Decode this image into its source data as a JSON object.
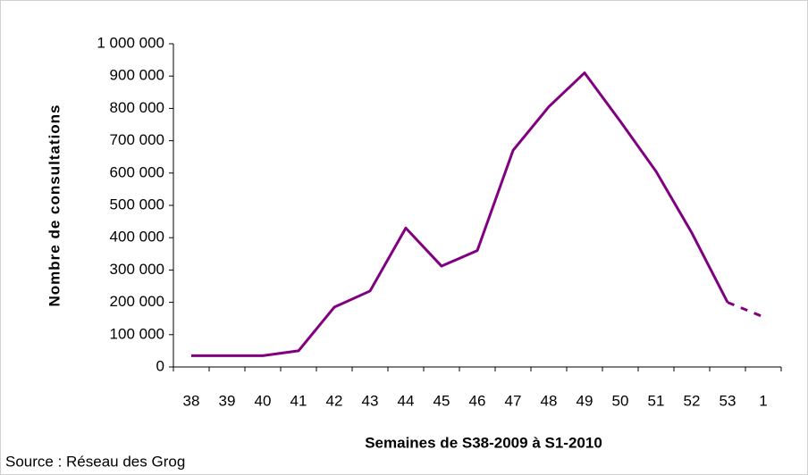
{
  "chart_data": {
    "type": "line",
    "y_label": "Nombre de consultations",
    "x_label": "Semaines de S38-2009 à S1-2010",
    "source": "Source : Réseau des Grog",
    "categories": [
      "38",
      "39",
      "40",
      "41",
      "42",
      "43",
      "44",
      "45",
      "46",
      "47",
      "48",
      "49",
      "50",
      "51",
      "52",
      "53",
      "1"
    ],
    "values": [
      35000,
      35000,
      35000,
      50000,
      185000,
      235000,
      430000,
      312000,
      360000,
      670000,
      805000,
      910000,
      760000,
      605000,
      415000,
      200000,
      155000
    ],
    "color": "#800080",
    "dashed_last_segment": true,
    "ylim": [
      0,
      1000000
    ],
    "yticks": [
      0,
      {
        "value": 100000,
        "label": "100 000"
      },
      {
        "value": 200000,
        "label": "200 000"
      },
      {
        "value": 300000,
        "label": "300 000"
      },
      {
        "value": 400000,
        "label": "400 000"
      },
      {
        "value": 500000,
        "label": "500 000"
      },
      {
        "value": 600000,
        "label": "600 000"
      },
      {
        "value": 700000,
        "label": "700 000"
      },
      {
        "value": 800000,
        "label": "800 000"
      },
      {
        "value": 900000,
        "label": "900 000"
      },
      {
        "value": 1000000,
        "label": "1 000 000"
      }
    ],
    "grid": false
  }
}
